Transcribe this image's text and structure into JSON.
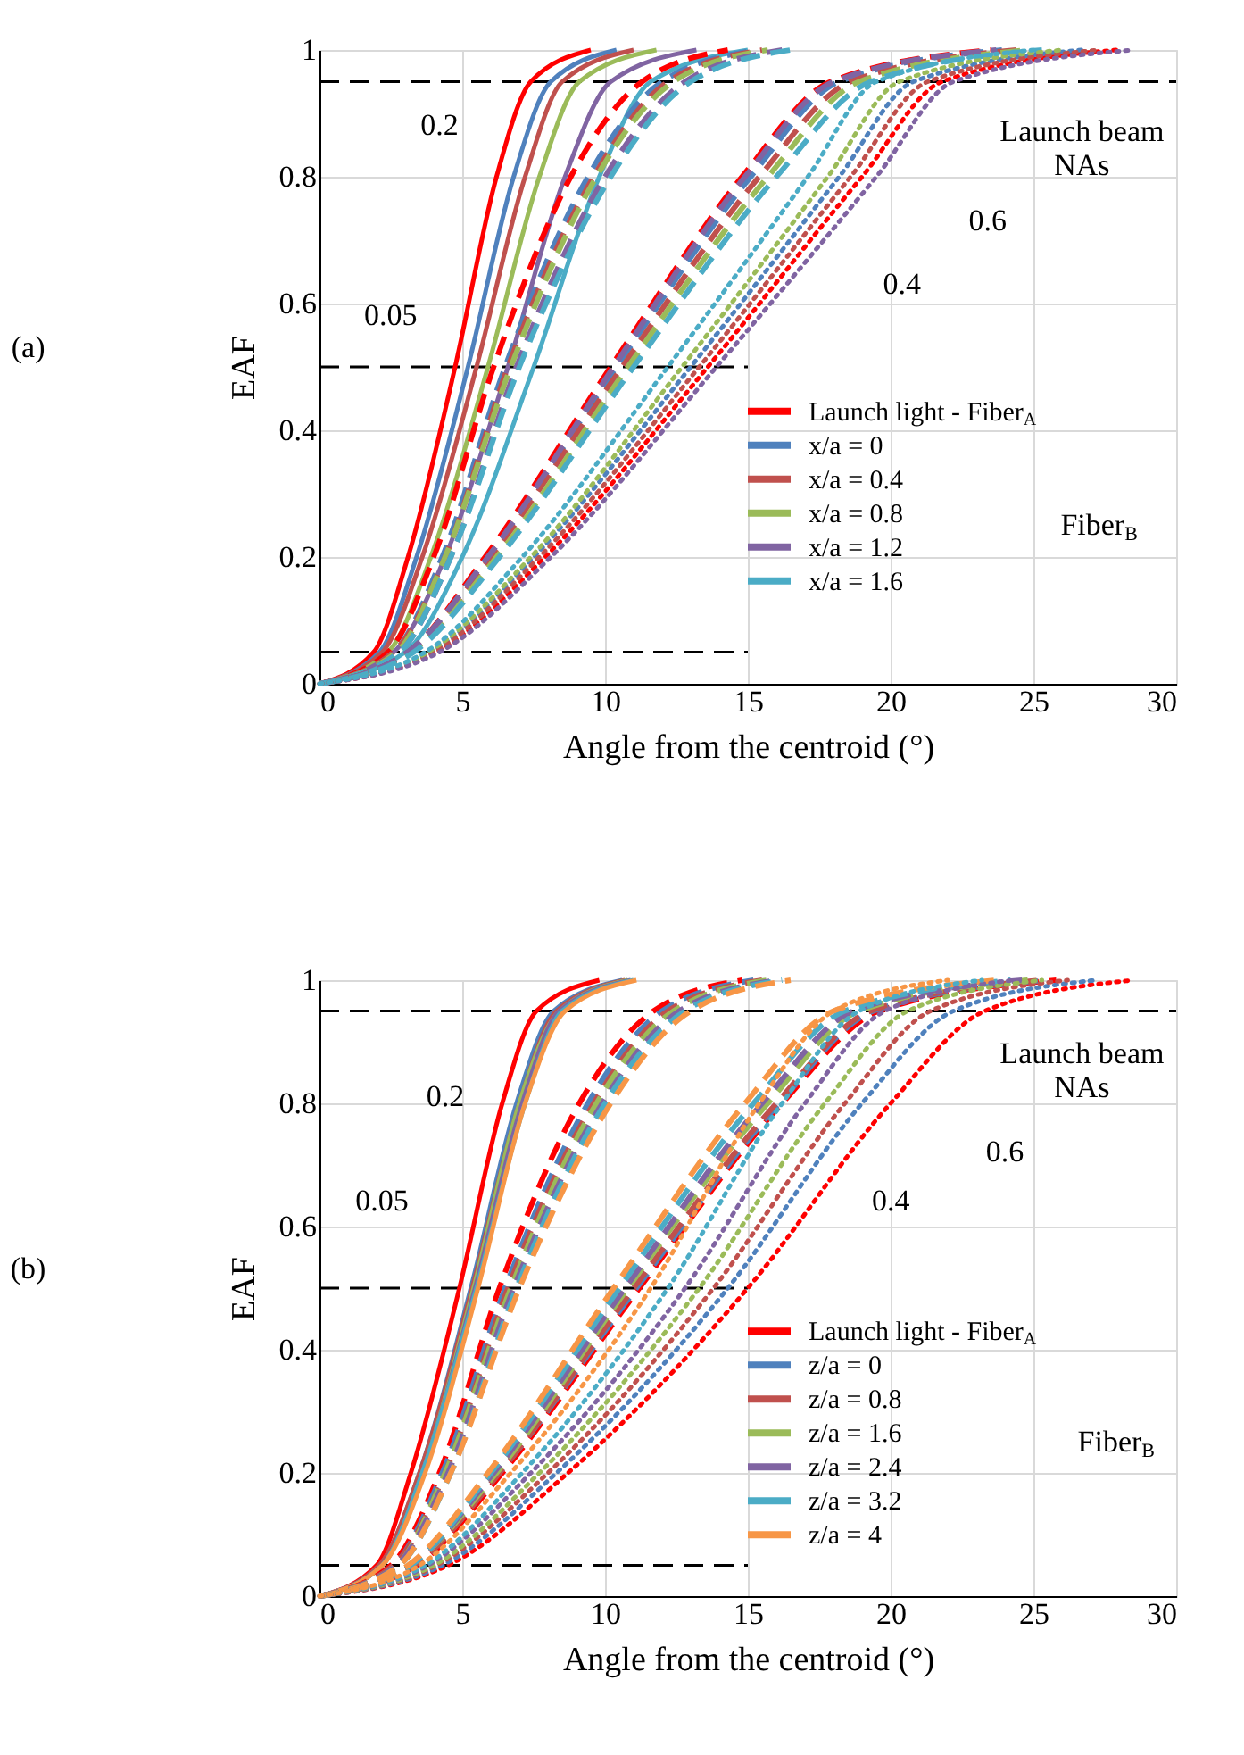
{
  "chart_data": [
    {
      "type": "line",
      "xlabel": "Angle from the centroid (°)",
      "ylabel": "EAF",
      "xlim": [
        0,
        30
      ],
      "ylim": [
        0,
        1
      ],
      "xticks": [
        0,
        5,
        10,
        15,
        20,
        25,
        30
      ],
      "yticks": [
        0,
        0.2,
        0.4,
        0.6,
        0.8,
        1
      ],
      "grid": true,
      "legend": "bottom right",
      "annotations": [
        "(a)",
        "0.05",
        "0.2",
        "0.4",
        "0.6",
        "Launch beam\nNAs",
        "Fiber$_{B}$"
      ],
      "series": [
        {
          "type": "line",
          "color": "#000000",
          "line_style": "dashed",
          "x": [
            0,
            30
          ],
          "values": [
            0.95,
            0.95
          ]
        },
        {
          "type": "line",
          "color": "#000000",
          "line_style": "dashed",
          "x": [
            0,
            15
          ],
          "values": [
            0.5,
            0.5
          ]
        },
        {
          "type": "line",
          "color": "#000000",
          "line_style": "dashed",
          "x": [
            0,
            15
          ],
          "values": [
            0.05,
            0.05
          ]
        },
        {
          "name": "Launch light - Fiber$_{A}$",
          "color": "#ff0000",
          "line_style": "solid",
          "x": [
            0,
            1.9,
            3.1,
            4.75,
            6.2,
            7.4,
            9.5
          ],
          "values": [
            0,
            0.05,
            0.2,
            0.5,
            0.8,
            0.95,
            1
          ]
        },
        {
          "name": "x/a = 0",
          "color": "#4f81bd",
          "line_style": "solid",
          "x": [
            0,
            2.1,
            3.4,
            5.2,
            6.8,
            8.1,
            10.4
          ],
          "values": [
            0,
            0.05,
            0.2,
            0.5,
            0.8,
            0.95,
            1
          ]
        },
        {
          "name": "x/a = 0.4",
          "color": "#c0504d",
          "line_style": "solid",
          "x": [
            0,
            2.2,
            3.6,
            5.5,
            7.2,
            8.5,
            11
          ],
          "values": [
            0,
            0.05,
            0.2,
            0.5,
            0.8,
            0.95,
            1
          ]
        },
        {
          "name": "x/a = 0.8",
          "color": "#9bbb59",
          "line_style": "solid",
          "x": [
            0,
            2.4,
            3.9,
            5.9,
            7.7,
            9.1,
            11.8
          ],
          "values": [
            0,
            0.05,
            0.2,
            0.5,
            0.8,
            0.95,
            1
          ]
        },
        {
          "name": "x/a = 1.2",
          "color": "#8064a2",
          "line_style": "solid",
          "x": [
            0,
            2.6,
            4.4,
            6.6,
            8.6,
            10.2,
            13.2
          ],
          "values": [
            0,
            0.05,
            0.2,
            0.5,
            0.8,
            0.95,
            1
          ]
        },
        {
          "name": "x/a = 1.6",
          "color": "#4bacc6",
          "line_style": "solid",
          "x": [
            0,
            3,
            5,
            7.5,
            9.8,
            11.6,
            15
          ],
          "values": [
            0,
            0.05,
            0.2,
            0.5,
            0.8,
            0.95,
            1
          ]
        },
        {
          "color": "#ff0000",
          "line_style": "dashed",
          "x": [
            0,
            2.4,
            4,
            6.1,
            8.8,
            11.3,
            14.3
          ],
          "values": [
            0,
            0.05,
            0.2,
            0.5,
            0.8,
            0.95,
            1
          ]
        },
        {
          "color": "#4f81bd",
          "line_style": "dashed",
          "x": [
            0,
            2.6,
            4.3,
            6.5,
            9.4,
            12,
            15.3
          ],
          "values": [
            0,
            0.05,
            0.2,
            0.5,
            0.8,
            0.95,
            1
          ]
        },
        {
          "color": "#c0504d",
          "line_style": "dashed",
          "x": [
            0,
            2.6,
            4.4,
            6.6,
            9.6,
            12.2,
            15.5
          ],
          "values": [
            0,
            0.05,
            0.2,
            0.5,
            0.8,
            0.95,
            1
          ]
        },
        {
          "color": "#9bbb59",
          "line_style": "dashed",
          "x": [
            0,
            2.7,
            4.4,
            6.7,
            9.7,
            12.4,
            15.7
          ],
          "values": [
            0,
            0.05,
            0.2,
            0.5,
            0.8,
            0.95,
            1
          ]
        },
        {
          "color": "#8064a2",
          "line_style": "dashed",
          "x": [
            0,
            2.8,
            4.6,
            6.9,
            10,
            12.8,
            16.2
          ],
          "values": [
            0,
            0.05,
            0.2,
            0.5,
            0.8,
            0.95,
            1
          ]
        },
        {
          "color": "#4bacc6",
          "line_style": "dashed",
          "x": [
            0,
            2.8,
            4.6,
            7,
            10.2,
            13,
            16.5
          ],
          "values": [
            0,
            0.05,
            0.2,
            0.5,
            0.8,
            0.95,
            1
          ]
        },
        {
          "color": "#ff0000",
          "line_style": "dashed",
          "x": [
            0,
            3.1,
            5.8,
            10.2,
            14.8,
            17.9,
            23.5
          ],
          "values": [
            0,
            0.05,
            0.2,
            0.5,
            0.8,
            0.95,
            1
          ]
        },
        {
          "color": "#4f81bd",
          "line_style": "dashed",
          "x": [
            0,
            3.1,
            5.9,
            10.4,
            15.1,
            18.2,
            23.9
          ],
          "values": [
            0,
            0.05,
            0.2,
            0.5,
            0.8,
            0.95,
            1
          ]
        },
        {
          "color": "#c0504d",
          "line_style": "dashed",
          "x": [
            0,
            3.2,
            6,
            10.6,
            15.4,
            18.6,
            24.4
          ],
          "values": [
            0,
            0.05,
            0.2,
            0.5,
            0.8,
            0.95,
            1
          ]
        },
        {
          "color": "#9bbb59",
          "line_style": "dashed",
          "x": [
            0,
            3.2,
            6.2,
            10.8,
            15.7,
            18.9,
            24.8
          ],
          "values": [
            0,
            0.05,
            0.2,
            0.5,
            0.8,
            0.95,
            1
          ]
        },
        {
          "color": "#8064a2",
          "line_style": "dashed",
          "x": [
            0,
            3.1,
            5.9,
            10.3,
            14.9,
            18,
            23.7
          ],
          "values": [
            0,
            0.05,
            0.2,
            0.5,
            0.8,
            0.95,
            1
          ]
        },
        {
          "color": "#4bacc6",
          "line_style": "dashed",
          "x": [
            0,
            3.3,
            6.3,
            11,
            16,
            19.3,
            25.3
          ],
          "values": [
            0,
            0.05,
            0.2,
            0.5,
            0.8,
            0.95,
            1
          ]
        },
        {
          "color": "#ff0000",
          "line_style": "dotted",
          "x": [
            0,
            4.1,
            7.9,
            13.6,
            19,
            21.8,
            27.9
          ],
          "values": [
            0,
            0.05,
            0.2,
            0.5,
            0.8,
            0.95,
            1
          ]
        },
        {
          "color": "#4f81bd",
          "line_style": "dotted",
          "x": [
            0,
            3.9,
            7.5,
            13,
            18.2,
            20.8,
            26.7
          ],
          "values": [
            0,
            0.05,
            0.2,
            0.5,
            0.8,
            0.95,
            1
          ]
        },
        {
          "color": "#c0504d",
          "line_style": "dotted",
          "x": [
            0,
            4,
            7.7,
            13.3,
            18.6,
            21.3,
            27.3
          ],
          "values": [
            0,
            0.05,
            0.2,
            0.5,
            0.8,
            0.95,
            1
          ]
        },
        {
          "color": "#9bbb59",
          "line_style": "dotted",
          "x": [
            0,
            3.8,
            7.4,
            12.7,
            17.8,
            20.3,
            26
          ],
          "values": [
            0,
            0.05,
            0.2,
            0.5,
            0.8,
            0.95,
            1
          ]
        },
        {
          "color": "#8064a2",
          "line_style": "dotted",
          "x": [
            0,
            4.2,
            8.1,
            13.9,
            19.5,
            22.2,
            28.5
          ],
          "values": [
            0,
            0.05,
            0.2,
            0.5,
            0.8,
            0.95,
            1
          ]
        },
        {
          "color": "#4bacc6",
          "line_style": "dotted",
          "x": [
            0,
            3.7,
            7.1,
            12.2,
            17.1,
            19.5,
            25
          ],
          "values": [
            0,
            0.05,
            0.2,
            0.5,
            0.8,
            0.95,
            1
          ]
        }
      ]
    },
    {
      "type": "line",
      "xlabel": "Angle from the centroid (°)",
      "ylabel": "EAF",
      "xlim": [
        0,
        30
      ],
      "ylim": [
        0,
        1
      ],
      "xticks": [
        0,
        5,
        10,
        15,
        20,
        25,
        30
      ],
      "yticks": [
        0,
        0.2,
        0.4,
        0.6,
        0.8,
        1
      ],
      "grid": true,
      "legend": "bottom right",
      "annotations": [
        "(b)",
        "0.05",
        "0.2",
        "0.4",
        "0.6",
        "Launch beam\nNAs",
        "Fiber$_{B}$"
      ],
      "series": [
        {
          "type": "line",
          "color": "#000000",
          "line_style": "dashed",
          "x": [
            0,
            30
          ],
          "values": [
            0.95,
            0.95
          ]
        },
        {
          "type": "line",
          "color": "#000000",
          "line_style": "dashed",
          "x": [
            0,
            15
          ],
          "values": [
            0.5,
            0.5
          ]
        },
        {
          "type": "line",
          "color": "#000000",
          "line_style": "dashed",
          "x": [
            0,
            15
          ],
          "values": [
            0.05,
            0.05
          ]
        },
        {
          "name": "Launch light - Fiber$_{A}$",
          "color": "#ff0000",
          "line_style": "solid",
          "x": [
            0,
            2,
            3.2,
            4.9,
            6.4,
            7.6,
            9.8
          ],
          "values": [
            0,
            0.05,
            0.2,
            0.5,
            0.8,
            0.95,
            1
          ]
        },
        {
          "name": "z/a = 0",
          "color": "#4f81bd",
          "line_style": "solid",
          "x": [
            0,
            2.1,
            3.5,
            5.3,
            6.9,
            8.2,
            10.6
          ],
          "values": [
            0,
            0.05,
            0.2,
            0.5,
            0.8,
            0.95,
            1
          ]
        },
        {
          "name": "z/a = 0.8",
          "color": "#c0504d",
          "line_style": "solid",
          "x": [
            0,
            2.1,
            3.5,
            5.35,
            7,
            8.3,
            10.7
          ],
          "values": [
            0,
            0.05,
            0.2,
            0.5,
            0.8,
            0.95,
            1
          ]
        },
        {
          "name": "z/a = 1.6",
          "color": "#9bbb59",
          "line_style": "solid",
          "x": [
            0,
            2.2,
            3.6,
            5.4,
            7,
            8.4,
            10.8
          ],
          "values": [
            0,
            0.05,
            0.2,
            0.5,
            0.8,
            0.95,
            1
          ]
        },
        {
          "name": "z/a = 2.4",
          "color": "#8064a2",
          "line_style": "solid",
          "x": [
            0,
            2.2,
            3.6,
            5.45,
            7.1,
            8.4,
            10.9
          ],
          "values": [
            0,
            0.05,
            0.2,
            0.5,
            0.8,
            0.95,
            1
          ]
        },
        {
          "name": "z/a = 3.2",
          "color": "#4bacc6",
          "line_style": "solid",
          "x": [
            0,
            2.2,
            3.6,
            5.5,
            7.2,
            8.5,
            11
          ],
          "values": [
            0,
            0.05,
            0.2,
            0.5,
            0.8,
            0.95,
            1
          ]
        },
        {
          "name": "z/a = 4",
          "color": "#f79646",
          "line_style": "solid",
          "x": [
            0,
            2.2,
            3.7,
            5.55,
            7.2,
            8.6,
            11.1
          ],
          "values": [
            0,
            0.05,
            0.2,
            0.5,
            0.8,
            0.95,
            1
          ]
        },
        {
          "color": "#ff0000",
          "line_style": "dashed",
          "x": [
            0,
            2.5,
            4.2,
            6.3,
            9.1,
            11.7,
            14.8
          ],
          "values": [
            0,
            0.05,
            0.2,
            0.5,
            0.8,
            0.95,
            1
          ]
        },
        {
          "color": "#4f81bd",
          "line_style": "dashed",
          "x": [
            0,
            2.6,
            4.3,
            6.5,
            9.4,
            12,
            15.2
          ],
          "values": [
            0,
            0.05,
            0.2,
            0.5,
            0.8,
            0.95,
            1
          ]
        },
        {
          "color": "#c0504d",
          "line_style": "dashed",
          "x": [
            0,
            2.6,
            4.4,
            6.6,
            9.6,
            12.2,
            15.5
          ],
          "values": [
            0,
            0.05,
            0.2,
            0.5,
            0.8,
            0.95,
            1
          ]
        },
        {
          "color": "#9bbb59",
          "line_style": "dashed",
          "x": [
            0,
            2.7,
            4.4,
            6.7,
            9.7,
            12.4,
            15.7
          ],
          "values": [
            0,
            0.05,
            0.2,
            0.5,
            0.8,
            0.95,
            1
          ]
        },
        {
          "color": "#8064a2",
          "line_style": "dashed",
          "x": [
            0,
            2.7,
            4.5,
            6.8,
            9.9,
            12.6,
            16
          ],
          "values": [
            0,
            0.05,
            0.2,
            0.5,
            0.8,
            0.95,
            1
          ]
        },
        {
          "color": "#4bacc6",
          "line_style": "dashed",
          "x": [
            0,
            2.8,
            4.6,
            6.9,
            10,
            12.8,
            16.2
          ],
          "values": [
            0,
            0.05,
            0.2,
            0.5,
            0.8,
            0.95,
            1
          ]
        },
        {
          "color": "#f79646",
          "line_style": "dashed",
          "x": [
            0,
            2.8,
            4.6,
            7,
            10.2,
            13,
            16.5
          ],
          "values": [
            0,
            0.05,
            0.2,
            0.5,
            0.8,
            0.95,
            1
          ]
        },
        {
          "color": "#ff0000",
          "line_style": "dashed",
          "x": [
            0,
            3.4,
            6.4,
            11.2,
            16.2,
            19.6,
            25.8
          ],
          "values": [
            0,
            0.05,
            0.2,
            0.5,
            0.8,
            0.95,
            1
          ]
        },
        {
          "color": "#4f81bd",
          "line_style": "dashed",
          "x": [
            0,
            3.3,
            6.3,
            11.1,
            16.1,
            19.4,
            25.5
          ],
          "values": [
            0,
            0.05,
            0.2,
            0.5,
            0.8,
            0.95,
            1
          ]
        },
        {
          "color": "#c0504d",
          "line_style": "dashed",
          "x": [
            0,
            3.3,
            6.3,
            11,
            16,
            19.3,
            25.3
          ],
          "values": [
            0,
            0.05,
            0.2,
            0.5,
            0.8,
            0.95,
            1
          ]
        },
        {
          "color": "#9bbb59",
          "line_style": "dashed",
          "x": [
            0,
            3.2,
            6.2,
            10.8,
            15.7,
            18.9,
            24.8
          ],
          "values": [
            0,
            0.05,
            0.2,
            0.5,
            0.8,
            0.95,
            1
          ]
        },
        {
          "color": "#8064a2",
          "line_style": "dashed",
          "x": [
            0,
            3.2,
            6.1,
            10.7,
            15.5,
            18.7,
            24.6
          ],
          "values": [
            0,
            0.05,
            0.2,
            0.5,
            0.8,
            0.95,
            1
          ]
        },
        {
          "color": "#4bacc6",
          "line_style": "dashed",
          "x": [
            0,
            3.2,
            6,
            10.5,
            15.2,
            18.4,
            24.2
          ],
          "values": [
            0,
            0.05,
            0.2,
            0.5,
            0.8,
            0.95,
            1
          ]
        },
        {
          "color": "#f79646",
          "line_style": "dashed",
          "x": [
            0,
            3.1,
            5.9,
            10.3,
            14.9,
            18,
            23.7
          ],
          "values": [
            0,
            0.05,
            0.2,
            0.5,
            0.8,
            0.95,
            1
          ]
        },
        {
          "color": "#ff0000",
          "line_style": "dotted",
          "x": [
            0,
            4.5,
            8.7,
            15,
            20,
            23.3,
            28.5
          ],
          "values": [
            0,
            0.05,
            0.2,
            0.5,
            0.8,
            0.95,
            1
          ]
        },
        {
          "color": "#4f81bd",
          "line_style": "dotted",
          "x": [
            0,
            4.3,
            8.3,
            14.3,
            19,
            22.2,
            27.2
          ],
          "values": [
            0,
            0.05,
            0.2,
            0.5,
            0.8,
            0.95,
            1
          ]
        },
        {
          "color": "#c0504d",
          "line_style": "dotted",
          "x": [
            0,
            4.1,
            8,
            13.8,
            18.4,
            21.4,
            26.2
          ],
          "values": [
            0,
            0.05,
            0.2,
            0.5,
            0.8,
            0.95,
            1
          ]
        },
        {
          "color": "#9bbb59",
          "line_style": "dotted",
          "x": [
            0,
            4,
            7.7,
            13.3,
            17.7,
            20.6,
            25.3
          ],
          "values": [
            0,
            0.05,
            0.2,
            0.5,
            0.8,
            0.95,
            1
          ]
        },
        {
          "color": "#8064a2",
          "line_style": "dotted",
          "x": [
            0,
            3.8,
            7.4,
            12.8,
            17,
            19.8,
            24.3
          ],
          "values": [
            0,
            0.05,
            0.2,
            0.5,
            0.8,
            0.95,
            1
          ]
        },
        {
          "color": "#4bacc6",
          "line_style": "dotted",
          "x": [
            0,
            3.7,
            7.1,
            12.2,
            16.2,
            18.9,
            23.2
          ],
          "values": [
            0,
            0.05,
            0.2,
            0.5,
            0.8,
            0.95,
            1
          ]
        },
        {
          "color": "#f79646",
          "line_style": "dotted",
          "x": [
            0,
            3.5,
            6.7,
            11.6,
            15.4,
            18,
            22
          ],
          "values": [
            0,
            0.05,
            0.2,
            0.5,
            0.8,
            0.95,
            1
          ]
        }
      ]
    }
  ]
}
